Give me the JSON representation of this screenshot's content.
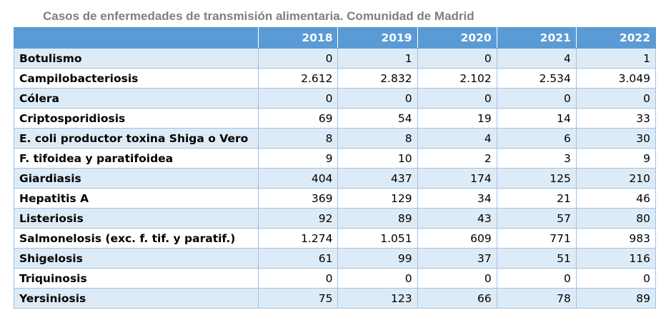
{
  "title": "Casos de enfermedades de transmisión alimentaria. Comunidad de Madrid",
  "table": {
    "headers": [
      "",
      "2018",
      "2019",
      "2020",
      "2021",
      "2022"
    ],
    "rows": [
      {
        "name": "Botulismo",
        "values": [
          "0",
          "1",
          "0",
          "4",
          "1"
        ]
      },
      {
        "name": "Campilobacteriosis",
        "values": [
          "2.612",
          "2.832",
          "2.102",
          "2.534",
          "3.049"
        ]
      },
      {
        "name": "Cólera",
        "values": [
          "0",
          "0",
          "0",
          "0",
          "0"
        ]
      },
      {
        "name": "Criptosporidiosis",
        "values": [
          "69",
          "54",
          "19",
          "14",
          "33"
        ]
      },
      {
        "name": "E. coli productor toxina Shiga o Vero",
        "values": [
          "8",
          "8",
          "4",
          "6",
          "30"
        ]
      },
      {
        "name": "F. tifoidea y paratifoidea",
        "values": [
          "9",
          "10",
          "2",
          "3",
          "9"
        ]
      },
      {
        "name": "Giardiasis",
        "values": [
          "404",
          "437",
          "174",
          "125",
          "210"
        ]
      },
      {
        "name": "Hepatitis A",
        "values": [
          "369",
          "129",
          "34",
          "21",
          "46"
        ]
      },
      {
        "name": "Listeriosis",
        "values": [
          "92",
          "89",
          "43",
          "57",
          "80"
        ]
      },
      {
        "name": "Salmonelosis (exc. f. tif. y paratif.)",
        "values": [
          "1.274",
          "1.051",
          "609",
          "771",
          "983"
        ]
      },
      {
        "name": "Shigelosis",
        "values": [
          "61",
          "99",
          "37",
          "51",
          "116"
        ]
      },
      {
        "name": "Triquinosis",
        "values": [
          "0",
          "0",
          "0",
          "0",
          "0"
        ]
      },
      {
        "name": "Yersiniosis",
        "values": [
          "75",
          "123",
          "66",
          "78",
          "89"
        ]
      }
    ]
  },
  "colors": {
    "header_bg": "#5b9bd5",
    "band_bg": "#ddebf7",
    "border": "#9dc3e6",
    "title": "#7f7f7f"
  }
}
